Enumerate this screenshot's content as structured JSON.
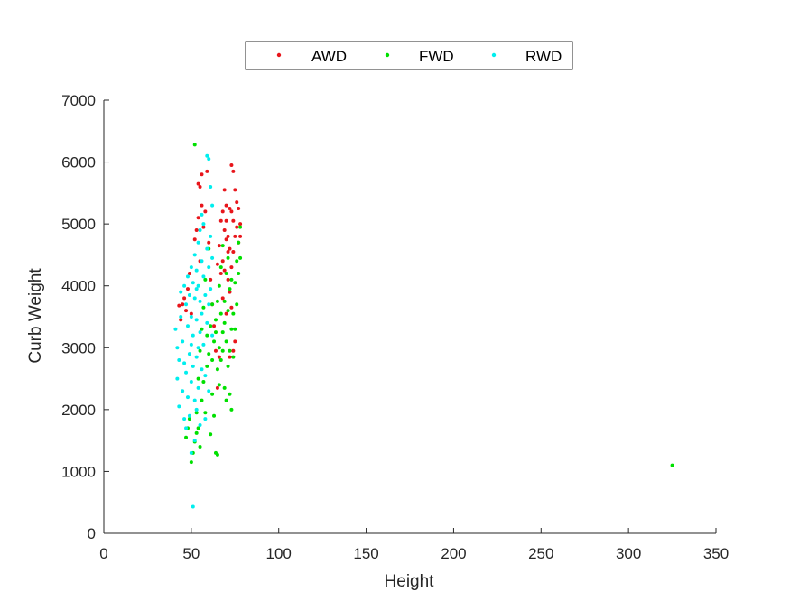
{
  "chart_data": {
    "type": "scatter",
    "xlabel": "Height",
    "ylabel": "Curb Weight",
    "xlim": [
      0,
      350
    ],
    "ylim": [
      0,
      7000
    ],
    "xticks": [
      0,
      50,
      100,
      150,
      200,
      250,
      300,
      350
    ],
    "yticks": [
      0,
      1000,
      2000,
      3000,
      4000,
      5000,
      6000,
      7000
    ],
    "grid": false,
    "legend_position": "top",
    "series": [
      {
        "name": "AWD",
        "color": "#e8151b",
        "points": [
          [
            43,
            3680
          ],
          [
            44,
            3450
          ],
          [
            45,
            3700
          ],
          [
            46,
            3800
          ],
          [
            47,
            3600
          ],
          [
            48,
            3950
          ],
          [
            49,
            4200
          ],
          [
            50,
            3550
          ],
          [
            52,
            4750
          ],
          [
            53,
            4900
          ],
          [
            54,
            5650
          ],
          [
            54,
            5100
          ],
          [
            55,
            5600
          ],
          [
            55,
            4400
          ],
          [
            56,
            5800
          ],
          [
            56,
            5300
          ],
          [
            57,
            4950
          ],
          [
            58,
            5200
          ],
          [
            59,
            5850
          ],
          [
            60,
            4700
          ],
          [
            61,
            4100
          ],
          [
            62,
            3700
          ],
          [
            63,
            3350
          ],
          [
            64,
            2950
          ],
          [
            65,
            4350
          ],
          [
            65,
            2350
          ],
          [
            66,
            4650
          ],
          [
            66,
            2850
          ],
          [
            67,
            4200
          ],
          [
            67,
            5050
          ],
          [
            68,
            5200
          ],
          [
            68,
            4400
          ],
          [
            68,
            3800
          ],
          [
            69,
            5550
          ],
          [
            69,
            4900
          ],
          [
            69,
            4250
          ],
          [
            70,
            4750
          ],
          [
            70,
            5300
          ],
          [
            70,
            5050
          ],
          [
            70,
            3550
          ],
          [
            71,
            4100
          ],
          [
            71,
            4800
          ],
          [
            71,
            4550
          ],
          [
            72,
            5250
          ],
          [
            72,
            4600
          ],
          [
            72,
            3900
          ],
          [
            73,
            5950
          ],
          [
            73,
            5200
          ],
          [
            73,
            4300
          ],
          [
            73,
            3650
          ],
          [
            74,
            5850
          ],
          [
            74,
            5050
          ],
          [
            74,
            4550
          ],
          [
            74,
            2950
          ],
          [
            75,
            5550
          ],
          [
            75,
            4800
          ],
          [
            75,
            3100
          ],
          [
            76,
            5350
          ],
          [
            76,
            4950
          ],
          [
            77,
            5250
          ],
          [
            77,
            4700
          ],
          [
            78,
            4800
          ],
          [
            78,
            5000
          ],
          [
            72,
            2850
          ]
        ]
      },
      {
        "name": "FWD",
        "color": "#00e000",
        "points": [
          [
            47,
            1550
          ],
          [
            48,
            1700
          ],
          [
            49,
            1850
          ],
          [
            50,
            1150
          ],
          [
            51,
            1300
          ],
          [
            52,
            1480
          ],
          [
            52,
            6280
          ],
          [
            53,
            1950
          ],
          [
            53,
            1620
          ],
          [
            54,
            2500
          ],
          [
            54,
            1700
          ],
          [
            55,
            2950
          ],
          [
            55,
            1400
          ],
          [
            56,
            3300
          ],
          [
            56,
            2150
          ],
          [
            57,
            3650
          ],
          [
            57,
            2450
          ],
          [
            58,
            4100
          ],
          [
            58,
            1950
          ],
          [
            59,
            3200
          ],
          [
            59,
            2700
          ],
          [
            60,
            4600
          ],
          [
            60,
            2900
          ],
          [
            61,
            3350
          ],
          [
            61,
            1600
          ],
          [
            62,
            2800
          ],
          [
            62,
            2250
          ],
          [
            63,
            3100
          ],
          [
            63,
            1900
          ],
          [
            64,
            3450
          ],
          [
            64,
            1300
          ],
          [
            65,
            3750
          ],
          [
            65,
            2650
          ],
          [
            65,
            1270
          ],
          [
            66,
            4000
          ],
          [
            66,
            3000
          ],
          [
            66,
            2400
          ],
          [
            67,
            3550
          ],
          [
            67,
            2800
          ],
          [
            67,
            4300
          ],
          [
            68,
            3250
          ],
          [
            68,
            2950
          ],
          [
            68,
            4650
          ],
          [
            69,
            3750
          ],
          [
            69,
            2350
          ],
          [
            69,
            3400
          ],
          [
            70,
            3100
          ],
          [
            70,
            4200
          ],
          [
            70,
            2150
          ],
          [
            71,
            3600
          ],
          [
            71,
            2700
          ],
          [
            71,
            4450
          ],
          [
            72,
            3950
          ],
          [
            72,
            2950
          ],
          [
            72,
            2250
          ],
          [
            73,
            3300
          ],
          [
            73,
            4100
          ],
          [
            73,
            2000
          ],
          [
            74,
            3550
          ],
          [
            74,
            2850
          ],
          [
            75,
            4050
          ],
          [
            75,
            3300
          ],
          [
            76,
            4400
          ],
          [
            76,
            3700
          ],
          [
            77,
            4700
          ],
          [
            77,
            4200
          ],
          [
            78,
            4950
          ],
          [
            78,
            4450
          ],
          [
            64,
            3250
          ],
          [
            62,
            3700
          ],
          [
            325,
            1100
          ]
        ]
      },
      {
        "name": "RWD",
        "color": "#00eeee",
        "points": [
          [
            41,
            3300
          ],
          [
            42,
            2500
          ],
          [
            42,
            3000
          ],
          [
            43,
            2800
          ],
          [
            43,
            2050
          ],
          [
            44,
            3900
          ],
          [
            44,
            3500
          ],
          [
            45,
            2300
          ],
          [
            45,
            3100
          ],
          [
            46,
            4000
          ],
          [
            46,
            1850
          ],
          [
            47,
            3700
          ],
          [
            47,
            2600
          ],
          [
            47,
            1700
          ],
          [
            48,
            4150
          ],
          [
            48,
            3350
          ],
          [
            48,
            2200
          ],
          [
            49,
            3850
          ],
          [
            49,
            2900
          ],
          [
            49,
            1900
          ],
          [
            50,
            4300
          ],
          [
            50,
            3500
          ],
          [
            50,
            2450
          ],
          [
            50,
            1300
          ],
          [
            51,
            430
          ],
          [
            51,
            4050
          ],
          [
            51,
            3200
          ],
          [
            51,
            2700
          ],
          [
            52,
            4500
          ],
          [
            52,
            3800
          ],
          [
            52,
            2150
          ],
          [
            52,
            1500
          ],
          [
            53,
            4250
          ],
          [
            53,
            3450
          ],
          [
            53,
            2850
          ],
          [
            53,
            2000
          ],
          [
            54,
            4700
          ],
          [
            54,
            4000
          ],
          [
            54,
            3000
          ],
          [
            54,
            2350
          ],
          [
            55,
            4900
          ],
          [
            55,
            3750
          ],
          [
            55,
            3250
          ],
          [
            55,
            1750
          ],
          [
            56,
            4400
          ],
          [
            56,
            3550
          ],
          [
            56,
            2650
          ],
          [
            57,
            5000
          ],
          [
            57,
            4150
          ],
          [
            57,
            3050
          ],
          [
            58,
            3850
          ],
          [
            58,
            2550
          ],
          [
            58,
            1850
          ],
          [
            59,
            6100
          ],
          [
            59,
            4600
          ],
          [
            59,
            3400
          ],
          [
            60,
            6050
          ],
          [
            60,
            4300
          ],
          [
            60,
            3700
          ],
          [
            60,
            2300
          ],
          [
            61,
            5600
          ],
          [
            61,
            4800
          ],
          [
            61,
            3950
          ],
          [
            62,
            5300
          ],
          [
            62,
            4450
          ],
          [
            62,
            3200
          ],
          [
            56,
            5150
          ],
          [
            53,
            3950
          ],
          [
            50,
            3050
          ],
          [
            46,
            2750
          ]
        ]
      }
    ]
  }
}
